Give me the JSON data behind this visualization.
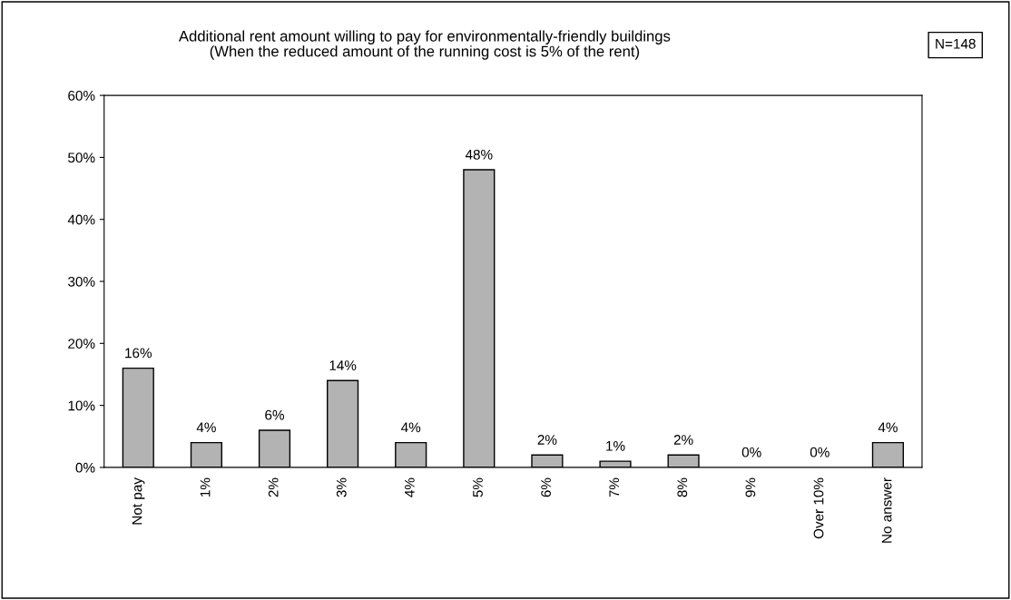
{
  "chart_data": {
    "type": "bar",
    "title": "Additional rent amount willing to pay for environmentally-friendly buildings\n(When the reduced amount of the running cost is 5% of the rent)",
    "categories": [
      "Not pay",
      "1%",
      "2%",
      "3%",
      "4%",
      "5%",
      "6%",
      "7%",
      "8%",
      "9%",
      "Over 10%",
      "No answer"
    ],
    "values": [
      16,
      4,
      6,
      14,
      4,
      48,
      2,
      1,
      2,
      0,
      0,
      4
    ],
    "value_labels": [
      "16%",
      "4%",
      "6%",
      "14%",
      "4%",
      "48%",
      "2%",
      "1%",
      "2%",
      "0%",
      "0%",
      "4%"
    ],
    "color": "#b3b3b3",
    "ylim": [
      0,
      60
    ],
    "yticks": [
      {
        "value": 0,
        "label": "0%"
      },
      {
        "value": 10,
        "label": "10%"
      },
      {
        "value": 20,
        "label": "20%"
      },
      {
        "value": 30,
        "label": "30%"
      },
      {
        "value": 40,
        "label": "40%"
      },
      {
        "value": 50,
        "label": "50%"
      },
      {
        "value": 60,
        "label": "60%"
      }
    ],
    "grid": false,
    "legend": false,
    "annotations": [
      "N=148"
    ]
  }
}
